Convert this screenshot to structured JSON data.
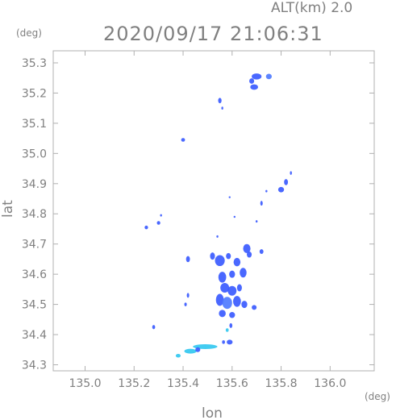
{
  "header": {
    "altitude_label": "ALT(km) 2.0",
    "timestamp": "2020/09/17 21:06:31",
    "y_unit": "(deg)",
    "x_unit": "(deg)"
  },
  "chart_data": {
    "type": "heatmap",
    "xlabel": "lon",
    "ylabel": "lat",
    "xlim": [
      134.87,
      136.18
    ],
    "ylim": [
      34.28,
      35.34
    ],
    "x_ticks": [
      "135.0",
      "135.2",
      "135.4",
      "135.6",
      "135.8",
      "136.0"
    ],
    "x_tick_values": [
      135.0,
      135.2,
      135.4,
      135.6,
      135.8,
      136.0
    ],
    "y_ticks": [
      "35.3",
      "35.2",
      "35.1",
      "35.0",
      "34.9",
      "34.8",
      "34.7",
      "34.6",
      "34.5",
      "34.4",
      "34.3"
    ],
    "y_tick_values": [
      35.3,
      35.2,
      35.1,
      35.0,
      34.9,
      34.8,
      34.7,
      34.6,
      34.5,
      34.4,
      34.3
    ],
    "grid": false,
    "colors": {
      "echo_weak": "#3b5bff",
      "echo_moderate": "#4f7bff",
      "echo_light": "#33c8f0",
      "frame": "#b0b0b0"
    },
    "cells": [
      {
        "lon": 135.7,
        "lat": 35.255,
        "rx": 0.02,
        "ry": 0.01,
        "c": "echo_weak"
      },
      {
        "lon": 135.75,
        "lat": 35.255,
        "rx": 0.012,
        "ry": 0.009,
        "c": "echo_moderate"
      },
      {
        "lon": 135.68,
        "lat": 35.24,
        "rx": 0.01,
        "ry": 0.009,
        "c": "echo_weak"
      },
      {
        "lon": 135.69,
        "lat": 35.22,
        "rx": 0.016,
        "ry": 0.009,
        "c": "echo_weak"
      },
      {
        "lon": 135.55,
        "lat": 35.175,
        "rx": 0.007,
        "ry": 0.009,
        "c": "echo_weak"
      },
      {
        "lon": 135.56,
        "lat": 35.15,
        "rx": 0.003,
        "ry": 0.005,
        "c": "echo_weak"
      },
      {
        "lon": 135.4,
        "lat": 35.045,
        "rx": 0.008,
        "ry": 0.006,
        "c": "echo_weak"
      },
      {
        "lon": 135.84,
        "lat": 34.935,
        "rx": 0.004,
        "ry": 0.006,
        "c": "echo_weak"
      },
      {
        "lon": 135.82,
        "lat": 34.905,
        "rx": 0.008,
        "ry": 0.01,
        "c": "echo_weak"
      },
      {
        "lon": 135.8,
        "lat": 34.88,
        "rx": 0.012,
        "ry": 0.009,
        "c": "echo_weak"
      },
      {
        "lon": 135.74,
        "lat": 34.875,
        "rx": 0.004,
        "ry": 0.004,
        "c": "echo_weak"
      },
      {
        "lon": 135.59,
        "lat": 34.855,
        "rx": 0.003,
        "ry": 0.003,
        "c": "echo_weak"
      },
      {
        "lon": 135.72,
        "lat": 34.835,
        "rx": 0.005,
        "ry": 0.008,
        "c": "echo_weak"
      },
      {
        "lon": 135.31,
        "lat": 34.795,
        "rx": 0.004,
        "ry": 0.004,
        "c": "echo_weak"
      },
      {
        "lon": 135.3,
        "lat": 34.77,
        "rx": 0.007,
        "ry": 0.006,
        "c": "echo_weak"
      },
      {
        "lon": 135.25,
        "lat": 34.755,
        "rx": 0.007,
        "ry": 0.006,
        "c": "echo_weak"
      },
      {
        "lon": 135.61,
        "lat": 34.79,
        "rx": 0.004,
        "ry": 0.003,
        "c": "echo_weak"
      },
      {
        "lon": 135.7,
        "lat": 34.775,
        "rx": 0.004,
        "ry": 0.004,
        "c": "echo_weak"
      },
      {
        "lon": 135.54,
        "lat": 34.725,
        "rx": 0.004,
        "ry": 0.004,
        "c": "echo_weak"
      },
      {
        "lon": 135.66,
        "lat": 34.685,
        "rx": 0.015,
        "ry": 0.015,
        "c": "echo_weak"
      },
      {
        "lon": 135.67,
        "lat": 34.665,
        "rx": 0.01,
        "ry": 0.01,
        "c": "echo_weak"
      },
      {
        "lon": 135.72,
        "lat": 34.675,
        "rx": 0.008,
        "ry": 0.008,
        "c": "echo_weak"
      },
      {
        "lon": 135.52,
        "lat": 34.66,
        "rx": 0.01,
        "ry": 0.012,
        "c": "echo_weak"
      },
      {
        "lon": 135.55,
        "lat": 34.645,
        "rx": 0.02,
        "ry": 0.018,
        "c": "echo_weak"
      },
      {
        "lon": 135.585,
        "lat": 34.66,
        "rx": 0.01,
        "ry": 0.01,
        "c": "echo_weak"
      },
      {
        "lon": 135.62,
        "lat": 34.64,
        "rx": 0.014,
        "ry": 0.014,
        "c": "echo_weak"
      },
      {
        "lon": 135.645,
        "lat": 34.605,
        "rx": 0.014,
        "ry": 0.016,
        "c": "echo_weak"
      },
      {
        "lon": 135.6,
        "lat": 34.6,
        "rx": 0.012,
        "ry": 0.012,
        "c": "echo_weak"
      },
      {
        "lon": 135.56,
        "lat": 34.59,
        "rx": 0.016,
        "ry": 0.018,
        "c": "echo_weak"
      },
      {
        "lon": 135.42,
        "lat": 34.65,
        "rx": 0.008,
        "ry": 0.01,
        "c": "echo_weak"
      },
      {
        "lon": 135.57,
        "lat": 34.555,
        "rx": 0.018,
        "ry": 0.016,
        "c": "echo_weak"
      },
      {
        "lon": 135.6,
        "lat": 34.545,
        "rx": 0.018,
        "ry": 0.016,
        "c": "echo_weak"
      },
      {
        "lon": 135.63,
        "lat": 34.555,
        "rx": 0.01,
        "ry": 0.012,
        "c": "echo_weak"
      },
      {
        "lon": 135.55,
        "lat": 34.515,
        "rx": 0.016,
        "ry": 0.02,
        "c": "echo_weak"
      },
      {
        "lon": 135.58,
        "lat": 34.505,
        "rx": 0.02,
        "ry": 0.02,
        "c": "echo_moderate"
      },
      {
        "lon": 135.62,
        "lat": 34.51,
        "rx": 0.016,
        "ry": 0.018,
        "c": "echo_weak"
      },
      {
        "lon": 135.65,
        "lat": 34.5,
        "rx": 0.012,
        "ry": 0.012,
        "c": "echo_weak"
      },
      {
        "lon": 135.69,
        "lat": 34.49,
        "rx": 0.01,
        "ry": 0.008,
        "c": "echo_weak"
      },
      {
        "lon": 135.56,
        "lat": 34.47,
        "rx": 0.014,
        "ry": 0.012,
        "c": "echo_weak"
      },
      {
        "lon": 135.6,
        "lat": 34.465,
        "rx": 0.012,
        "ry": 0.01,
        "c": "echo_weak"
      },
      {
        "lon": 135.42,
        "lat": 34.53,
        "rx": 0.005,
        "ry": 0.008,
        "c": "echo_weak"
      },
      {
        "lon": 135.41,
        "lat": 34.5,
        "rx": 0.005,
        "ry": 0.006,
        "c": "echo_weak"
      },
      {
        "lon": 135.595,
        "lat": 34.43,
        "rx": 0.006,
        "ry": 0.008,
        "c": "echo_weak"
      },
      {
        "lon": 135.58,
        "lat": 34.415,
        "rx": 0.006,
        "ry": 0.006,
        "c": "echo_light"
      },
      {
        "lon": 135.28,
        "lat": 34.425,
        "rx": 0.006,
        "ry": 0.007,
        "c": "echo_weak"
      },
      {
        "lon": 135.59,
        "lat": 34.375,
        "rx": 0.012,
        "ry": 0.008,
        "c": "echo_weak"
      },
      {
        "lon": 135.565,
        "lat": 34.375,
        "rx": 0.006,
        "ry": 0.006,
        "c": "echo_weak"
      },
      {
        "lon": 135.49,
        "lat": 34.36,
        "rx": 0.05,
        "ry": 0.008,
        "c": "echo_light"
      },
      {
        "lon": 135.43,
        "lat": 34.345,
        "rx": 0.025,
        "ry": 0.008,
        "c": "echo_light"
      },
      {
        "lon": 135.38,
        "lat": 34.33,
        "rx": 0.01,
        "ry": 0.006,
        "c": "echo_light"
      },
      {
        "lon": 135.46,
        "lat": 34.35,
        "rx": 0.01,
        "ry": 0.008,
        "c": "echo_weak"
      }
    ]
  }
}
